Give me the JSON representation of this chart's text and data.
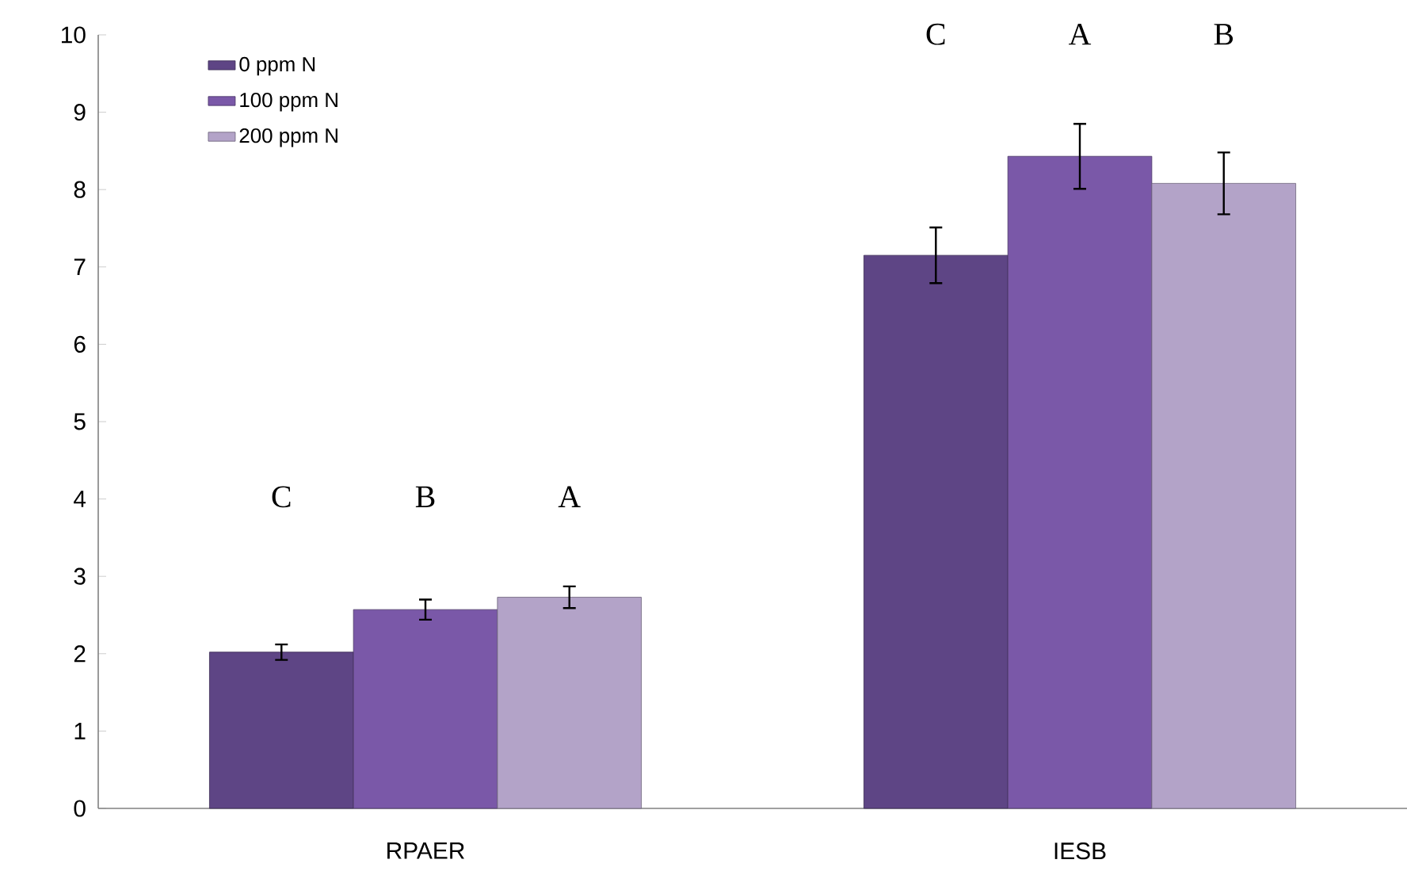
{
  "chart_data": {
    "type": "bar",
    "categories": [
      "RPAER",
      "IESB"
    ],
    "series": [
      {
        "name": "0 ppm N",
        "color": "#5e4585",
        "values": [
          2.02,
          7.15
        ],
        "errors": [
          0.1,
          0.36
        ]
      },
      {
        "name": "100 ppm N",
        "color": "#7a58a8",
        "values": [
          2.57,
          8.43
        ],
        "errors": [
          0.13,
          0.42
        ]
      },
      {
        "name": "200 ppm N",
        "color": "#b3a3c8",
        "values": [
          2.73,
          8.08
        ],
        "errors": [
          0.14,
          0.4
        ]
      }
    ],
    "ylim": [
      0,
      10
    ],
    "yticks": [
      0,
      1,
      2,
      3,
      4,
      5,
      6,
      7,
      8,
      9,
      10
    ],
    "grid": false,
    "legend": "top left",
    "annotations": [
      "C",
      "B",
      "A",
      "C",
      "A",
      "B"
    ]
  }
}
